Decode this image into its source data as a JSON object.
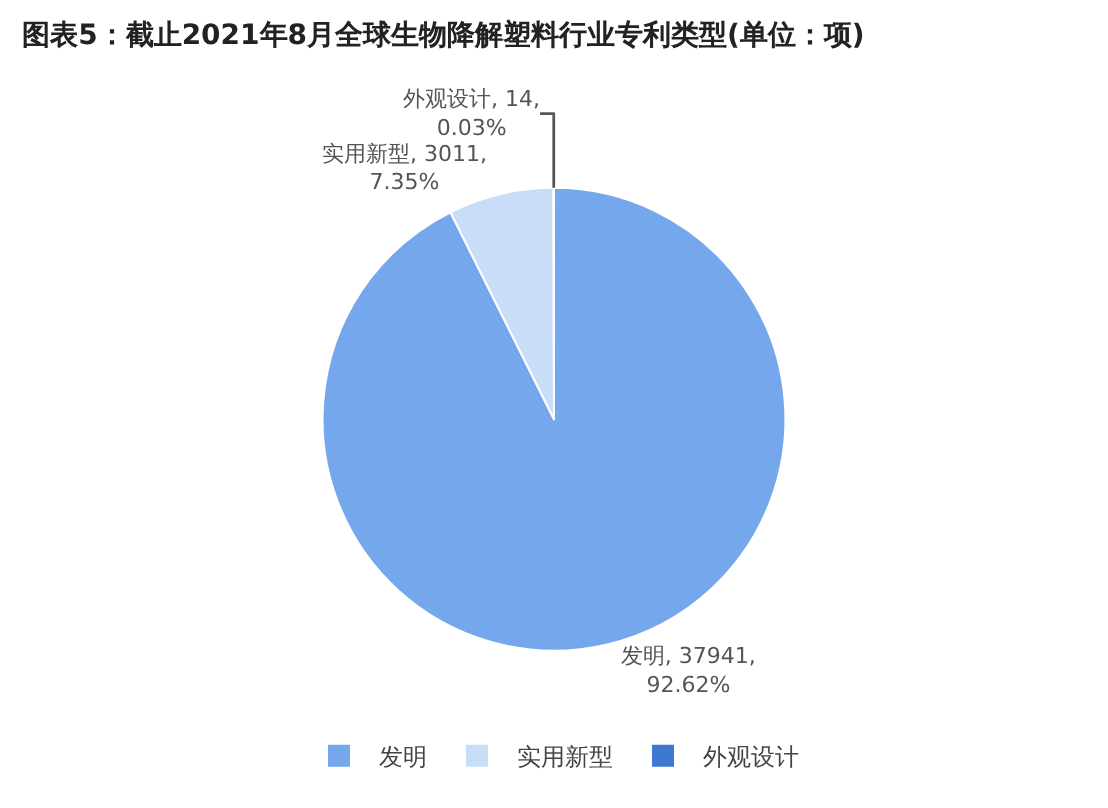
{
  "chart_data": {
    "type": "pie",
    "title": "图表5：截止2021年8月全球生物降解塑料行业专利类型(单位：项)",
    "categories": [
      "发明",
      "实用新型",
      "外观设计"
    ],
    "values": [
      37941,
      3011,
      14
    ],
    "colors": [
      "#74a7ec",
      "#c7ddf8",
      "#3f78d0"
    ],
    "value_labels": [
      "发明, 37941,\n92.62%",
      "实用新型, 3011,\n7.35%",
      "外观设计, 14,\n0.03%"
    ],
    "legend": "bottom"
  }
}
